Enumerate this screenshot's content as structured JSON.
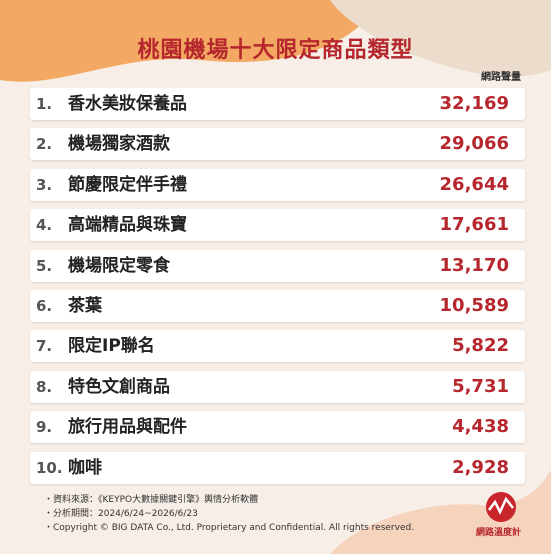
{
  "title": "桃園機場十大限定商品類型",
  "value_header": "網路聲量",
  "rows": [
    {
      "rank": "1.",
      "name": "香水美妝保養品",
      "value": "32,169"
    },
    {
      "rank": "2.",
      "name": "機場獨家酒款",
      "value": "29,066"
    },
    {
      "rank": "3.",
      "name": "節慶限定伴手禮",
      "value": "26,644"
    },
    {
      "rank": "4.",
      "name": "高端精品與珠寶",
      "value": "17,661"
    },
    {
      "rank": "5.",
      "name": "機場限定零食",
      "value": "13,170"
    },
    {
      "rank": "6.",
      "name": "茶葉",
      "value": "10,589"
    },
    {
      "rank": "7.",
      "name": "限定IP聯名",
      "value": "5,822"
    },
    {
      "rank": "8.",
      "name": "特色文創商品",
      "value": "5,731"
    },
    {
      "rank": "9.",
      "name": "旅行用品與配件",
      "value": "4,438"
    },
    {
      "rank": "10.",
      "name": "咖啡",
      "value": "2,928"
    }
  ],
  "notes": [
    "・資料來源：《KEYPO大數據關鍵引擎》輿情分析軟體",
    "・分析期間：2024/6/24~2026/6/23",
    "・Copyright © BIG DATA Co., Ltd. Proprietary and Confidential. All rights reserved."
  ],
  "logo": "網路溫度計"
}
